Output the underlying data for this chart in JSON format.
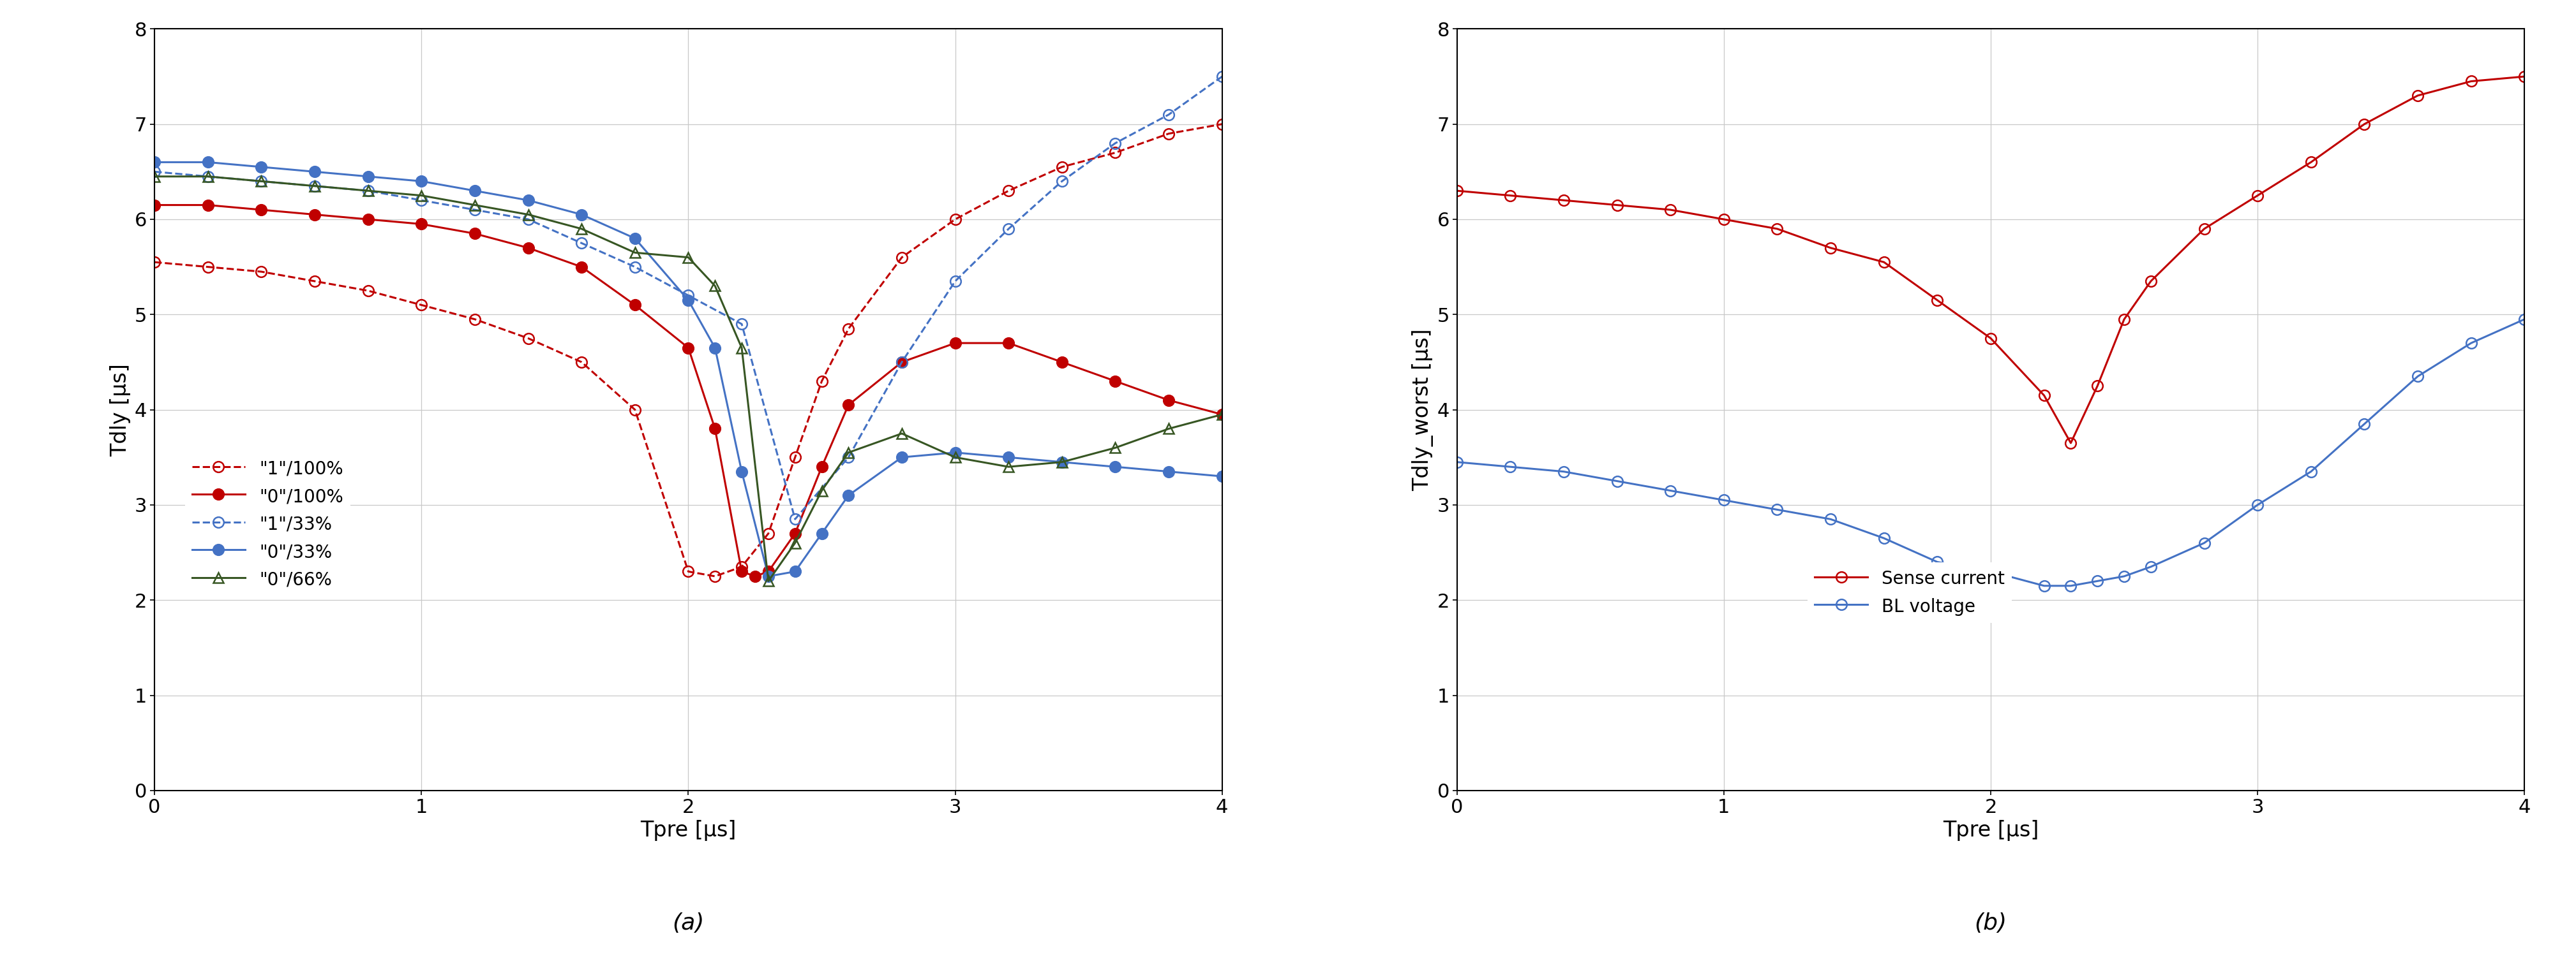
{
  "plot_a": {
    "title": "(a)",
    "xlabel": "Tpre [μs]",
    "ylabel": "Tdly [μs]",
    "xlim": [
      0,
      4
    ],
    "ylim": [
      0,
      8
    ],
    "xticks": [
      0,
      1,
      2,
      3,
      4
    ],
    "yticks": [
      0,
      1,
      2,
      3,
      4,
      5,
      6,
      7,
      8
    ],
    "series": [
      {
        "label": "\"1\"/100%",
        "color": "#c00000",
        "linestyle": "--",
        "marker": "o",
        "markerface": "none",
        "x": [
          0,
          0.2,
          0.4,
          0.6,
          0.8,
          1.0,
          1.2,
          1.4,
          1.6,
          1.8,
          2.0,
          2.1,
          2.2,
          2.3,
          2.4,
          2.5,
          2.6,
          2.8,
          3.0,
          3.2,
          3.4,
          3.6,
          3.8,
          4.0
        ],
        "y": [
          5.55,
          5.5,
          5.45,
          5.35,
          5.25,
          5.1,
          4.95,
          4.75,
          4.5,
          4.0,
          2.3,
          2.25,
          2.35,
          2.7,
          3.5,
          4.3,
          4.85,
          5.6,
          6.0,
          6.3,
          6.55,
          6.7,
          6.9,
          7.0
        ]
      },
      {
        "label": "\"0\"/100%",
        "color": "#c00000",
        "linestyle": "-",
        "marker": "o",
        "markerface": "filled",
        "x": [
          0,
          0.2,
          0.4,
          0.6,
          0.8,
          1.0,
          1.2,
          1.4,
          1.6,
          1.8,
          2.0,
          2.1,
          2.2,
          2.25,
          2.3,
          2.4,
          2.5,
          2.6,
          2.8,
          3.0,
          3.2,
          3.4,
          3.6,
          3.8,
          4.0
        ],
        "y": [
          6.15,
          6.15,
          6.1,
          6.05,
          6.0,
          5.95,
          5.85,
          5.7,
          5.5,
          5.1,
          4.65,
          3.8,
          2.3,
          2.25,
          2.3,
          2.7,
          3.4,
          4.05,
          4.5,
          4.7,
          4.7,
          4.5,
          4.3,
          4.1,
          3.95
        ]
      },
      {
        "label": "\"1\"/33%",
        "color": "#4472c4",
        "linestyle": "--",
        "marker": "o",
        "markerface": "none",
        "x": [
          0,
          0.2,
          0.4,
          0.6,
          0.8,
          1.0,
          1.2,
          1.4,
          1.6,
          1.8,
          2.0,
          2.2,
          2.4,
          2.6,
          2.8,
          3.0,
          3.2,
          3.4,
          3.6,
          3.8,
          4.0
        ],
        "y": [
          6.5,
          6.45,
          6.4,
          6.35,
          6.3,
          6.2,
          6.1,
          6.0,
          5.75,
          5.5,
          5.2,
          4.9,
          2.85,
          3.5,
          4.5,
          5.35,
          5.9,
          6.4,
          6.8,
          7.1,
          7.5
        ]
      },
      {
        "label": "\"0\"/33%",
        "color": "#4472c4",
        "linestyle": "-",
        "marker": "o",
        "markerface": "filled",
        "x": [
          0,
          0.2,
          0.4,
          0.6,
          0.8,
          1.0,
          1.2,
          1.4,
          1.6,
          1.8,
          2.0,
          2.1,
          2.2,
          2.3,
          2.4,
          2.5,
          2.6,
          2.8,
          3.0,
          3.2,
          3.4,
          3.6,
          3.8,
          4.0
        ],
        "y": [
          6.6,
          6.6,
          6.55,
          6.5,
          6.45,
          6.4,
          6.3,
          6.2,
          6.05,
          5.8,
          5.15,
          4.65,
          3.35,
          2.25,
          2.3,
          2.7,
          3.1,
          3.5,
          3.55,
          3.5,
          3.45,
          3.4,
          3.35,
          3.3
        ]
      },
      {
        "label": "\"0\"/66%",
        "color": "#375623",
        "linestyle": "-",
        "marker": "^",
        "markerface": "none",
        "x": [
          0,
          0.2,
          0.4,
          0.6,
          0.8,
          1.0,
          1.2,
          1.4,
          1.6,
          1.8,
          2.0,
          2.1,
          2.2,
          2.3,
          2.4,
          2.5,
          2.6,
          2.8,
          3.0,
          3.2,
          3.4,
          3.6,
          3.8,
          4.0
        ],
        "y": [
          6.45,
          6.45,
          6.4,
          6.35,
          6.3,
          6.25,
          6.15,
          6.05,
          5.9,
          5.65,
          5.6,
          5.3,
          4.65,
          2.2,
          2.6,
          3.15,
          3.55,
          3.75,
          3.5,
          3.4,
          3.45,
          3.6,
          3.8,
          3.95
        ]
      }
    ]
  },
  "plot_b": {
    "title": "(b)",
    "xlabel": "Tpre [μs]",
    "ylabel": "Tdly_worst [μs]",
    "xlim": [
      0,
      4
    ],
    "ylim": [
      0,
      8
    ],
    "xticks": [
      0,
      1,
      2,
      3,
      4
    ],
    "yticks": [
      0,
      1,
      2,
      3,
      4,
      5,
      6,
      7,
      8
    ],
    "series": [
      {
        "label": "Sense current",
        "color": "#c00000",
        "linestyle": "-",
        "marker": "o",
        "markerface": "none",
        "x": [
          0,
          0.2,
          0.4,
          0.6,
          0.8,
          1.0,
          1.2,
          1.4,
          1.6,
          1.8,
          2.0,
          2.2,
          2.3,
          2.4,
          2.5,
          2.6,
          2.8,
          3.0,
          3.2,
          3.4,
          3.6,
          3.8,
          4.0
        ],
        "y": [
          6.3,
          6.25,
          6.2,
          6.15,
          6.1,
          6.0,
          5.9,
          5.7,
          5.55,
          5.15,
          4.75,
          4.15,
          3.65,
          4.25,
          4.95,
          5.35,
          5.9,
          6.25,
          6.6,
          7.0,
          7.3,
          7.45,
          7.5
        ]
      },
      {
        "label": "BL voltage",
        "color": "#4472c4",
        "linestyle": "-",
        "marker": "o",
        "markerface": "none",
        "x": [
          0,
          0.2,
          0.4,
          0.6,
          0.8,
          1.0,
          1.2,
          1.4,
          1.6,
          1.8,
          2.0,
          2.2,
          2.3,
          2.4,
          2.5,
          2.6,
          2.8,
          3.0,
          3.2,
          3.4,
          3.6,
          3.8,
          4.0
        ],
        "y": [
          3.45,
          3.4,
          3.35,
          3.25,
          3.15,
          3.05,
          2.95,
          2.85,
          2.65,
          2.4,
          2.3,
          2.15,
          2.15,
          2.2,
          2.25,
          2.35,
          2.6,
          3.0,
          3.35,
          3.85,
          4.35,
          4.7,
          4.95
        ]
      }
    ]
  },
  "background_color": "#ffffff",
  "grid_color": "#c8c8c8",
  "font_size": 22,
  "label_font_size": 24,
  "title_font_size": 26,
  "legend_font_size": 20,
  "tick_font_size": 22,
  "marker_size": 12,
  "line_width": 2.2,
  "marker_edge_width": 1.8
}
